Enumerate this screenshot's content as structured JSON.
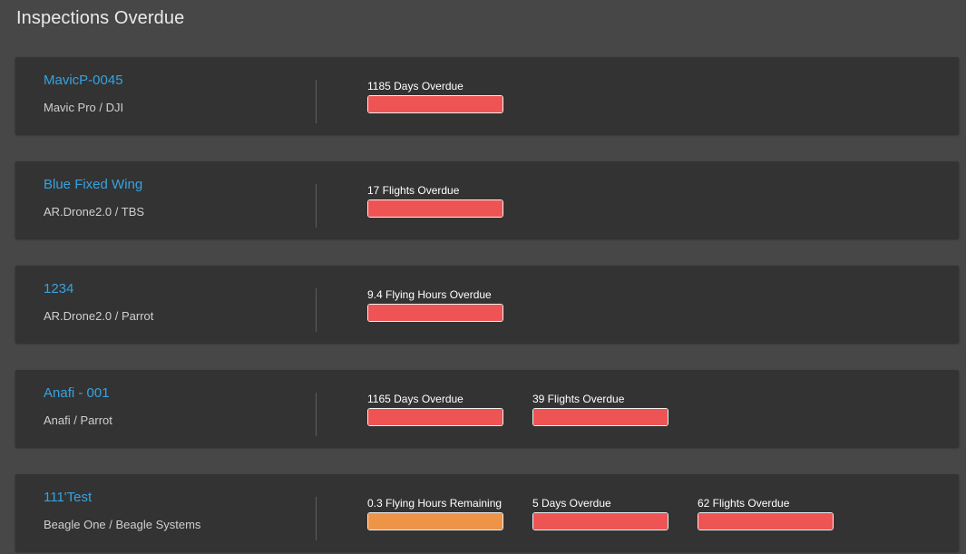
{
  "header": {
    "title": "Inspections Overdue"
  },
  "colors": {
    "overdue": "#ee5454",
    "remaining": "#ee9446",
    "link": "#35a3e0"
  },
  "aircraft": [
    {
      "name": "MavicP-0045",
      "model": "Mavic Pro / DJI",
      "statuses": [
        {
          "label": "1185 Days Overdue",
          "level": "overdue",
          "fill_percent": 100
        }
      ]
    },
    {
      "name": "Blue Fixed Wing",
      "model": "AR.Drone2.0 / TBS",
      "statuses": [
        {
          "label": "17 Flights Overdue",
          "level": "overdue",
          "fill_percent": 100
        }
      ]
    },
    {
      "name": "1234",
      "model": "AR.Drone2.0 / Parrot",
      "statuses": [
        {
          "label": "9.4 Flying Hours Overdue",
          "level": "overdue",
          "fill_percent": 100
        }
      ]
    },
    {
      "name": "Anafi - 001",
      "model": "Anafi / Parrot",
      "statuses": [
        {
          "label": "1165 Days Overdue",
          "level": "overdue",
          "fill_percent": 100
        },
        {
          "label": "39 Flights Overdue",
          "level": "overdue",
          "fill_percent": 100
        }
      ]
    },
    {
      "name": "111'Test",
      "model": "Beagle One / Beagle Systems",
      "statuses": [
        {
          "label": "0.3 Flying Hours Remaining",
          "level": "remaining",
          "fill_percent": 100
        },
        {
          "label": "5 Days Overdue",
          "level": "overdue",
          "fill_percent": 100
        },
        {
          "label": "62 Flights Overdue",
          "level": "overdue",
          "fill_percent": 100
        }
      ]
    }
  ]
}
